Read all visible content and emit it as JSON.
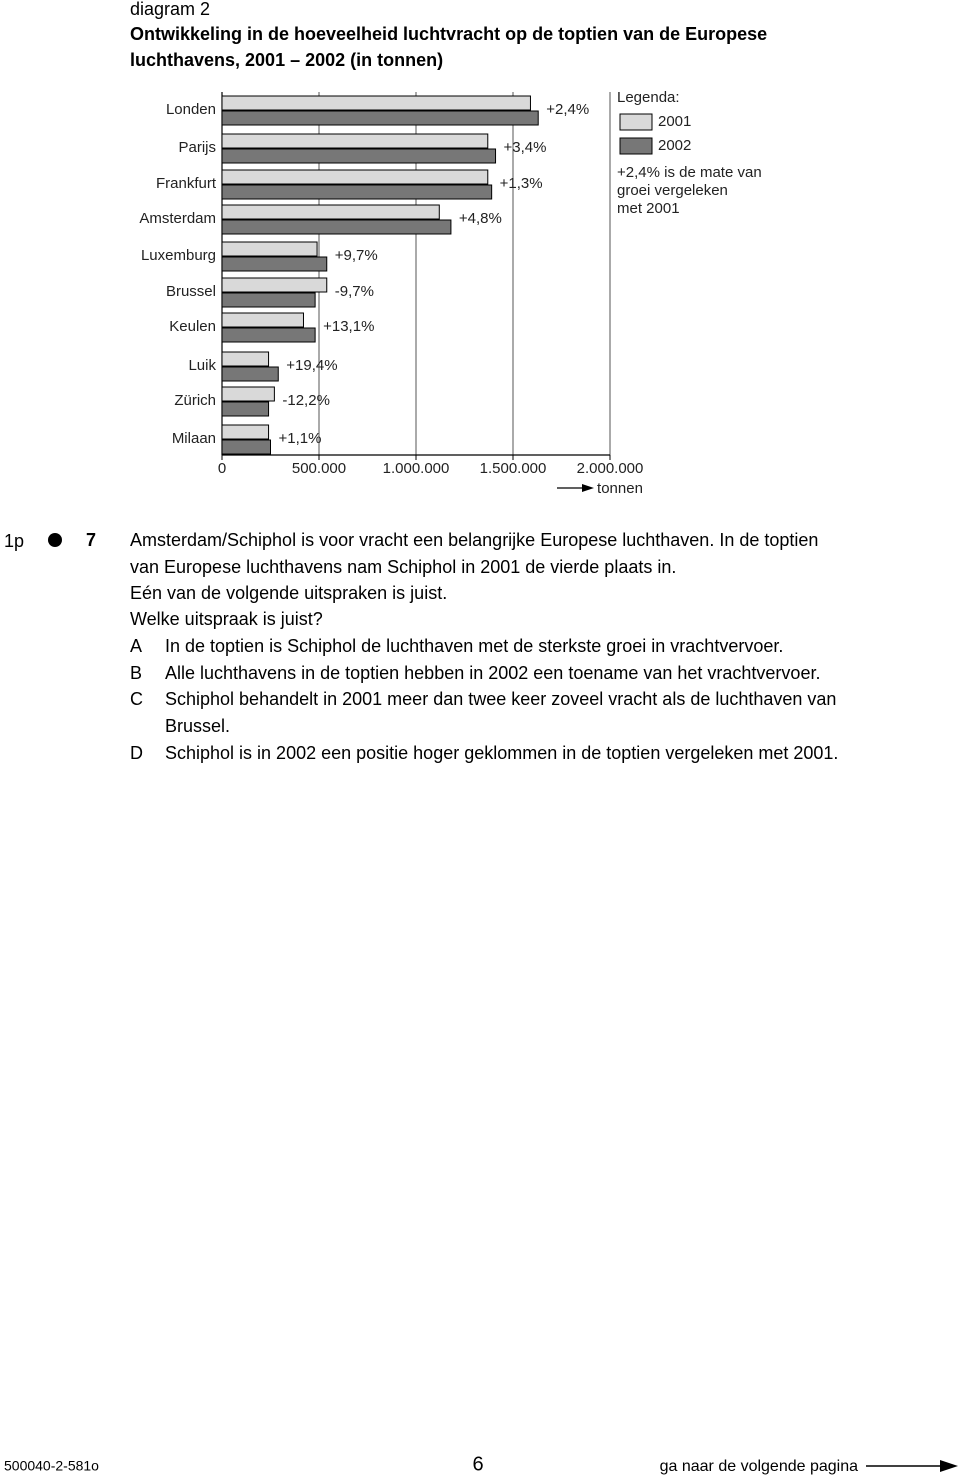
{
  "header": {
    "label": "diagram 2",
    "title": [
      "Ontwikkeling in de hoeveelheid luchtvracht op de toptien van de Europese",
      "luchthavens, 2001 – 2002 (in tonnen)"
    ]
  },
  "chart_data": {
    "type": "bar",
    "orientation": "horizontal",
    "categories": [
      "Londen",
      "Parijs",
      "Frankfurt",
      "Amsterdam",
      "Luxemburg",
      "Brussel",
      "Keulen",
      "Luik",
      "Zürich",
      "Milaan"
    ],
    "series": [
      {
        "name": "2001",
        "color": "#d9d9d9",
        "values": [
          1590000,
          1370000,
          1370000,
          1120000,
          490000,
          540000,
          420000,
          240000,
          270000,
          240000
        ]
      },
      {
        "name": "2002",
        "color": "#777777",
        "values": [
          1630000,
          1410000,
          1390000,
          1180000,
          540000,
          480000,
          480000,
          290000,
          240000,
          250000
        ]
      }
    ],
    "growth_labels": [
      "+2,4%",
      "+3,4%",
      "+1,3%",
      "+4,8%",
      "+9,7%",
      "-9,7%",
      "+13,1%",
      "+19,4%",
      "-12,2%",
      "+1,1%"
    ],
    "xlim": [
      0,
      2000000
    ],
    "xticks": [
      0,
      {
        "value": 500000,
        "label": "500.000"
      },
      {
        "value": 1000000,
        "label": "1.000.000"
      },
      {
        "value": 1500000,
        "label": "1.500.000"
      },
      {
        "value": 2000000,
        "label": "2.000.000"
      }
    ],
    "xlabel": "tonnen",
    "grid": true,
    "legend_title": "Legenda:",
    "legend_note": [
      "+2,4% is de mate van",
      "groei vergeleken",
      "met 2001"
    ]
  },
  "question": {
    "points": "1p",
    "number": "7",
    "lines": [
      "Amsterdam/Schiphol is voor vracht een belangrijke Europese luchthaven. In de toptien",
      "van Europese luchthavens nam Schiphol in 2001 de vierde plaats in.",
      "Eén van de volgende uitspraken is juist.",
      "Welke uitspraak is juist?"
    ],
    "options": [
      {
        "letter": "A",
        "text": [
          "In de toptien is Schiphol de luchthaven met de sterkste groei in vrachtvervoer."
        ]
      },
      {
        "letter": "B",
        "text": [
          "Alle luchthavens in de toptien hebben in 2002 een toename van het vrachtvervoer."
        ]
      },
      {
        "letter": "C",
        "text": [
          "Schiphol behandelt in 2001 meer dan twee keer zoveel vracht als de luchthaven van",
          "Brussel."
        ]
      },
      {
        "letter": "D",
        "text": [
          "Schiphol is in 2002 een positie hoger geklommen in de toptien vergeleken met 2001."
        ]
      }
    ]
  },
  "footer": {
    "code": "500040-2-581o",
    "page": "6",
    "next": "ga naar de volgende pagina"
  }
}
